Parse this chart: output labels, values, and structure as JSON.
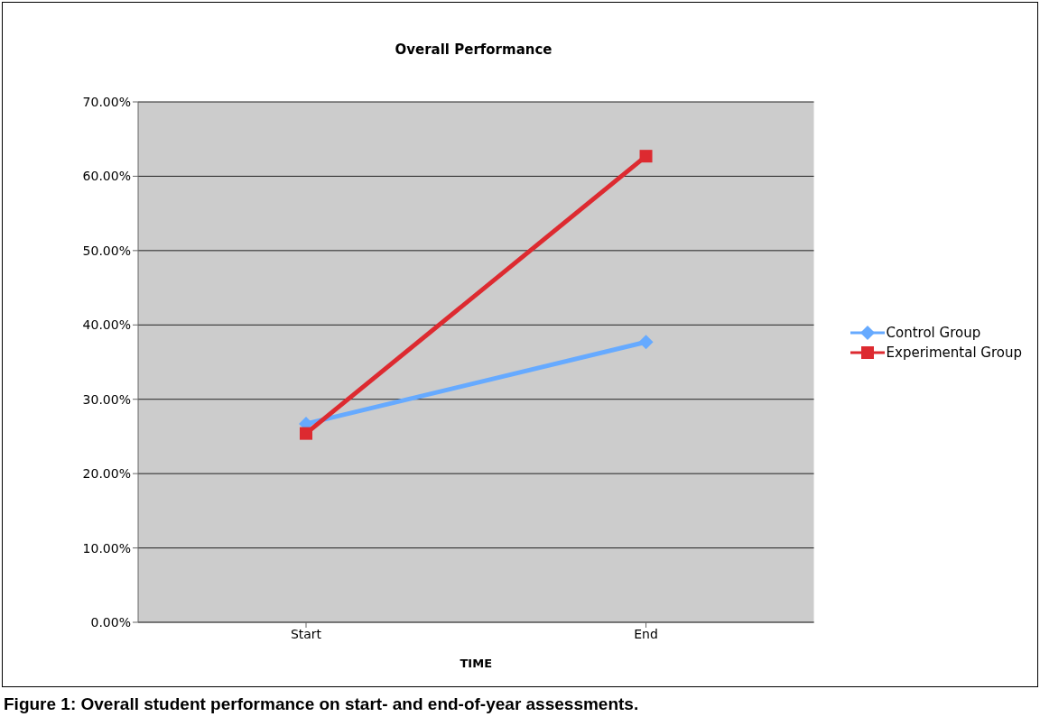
{
  "chart_data": {
    "type": "line",
    "title": "Overall Performance",
    "xlabel": "TIME",
    "categories": [
      "Start",
      "End"
    ],
    "series": [
      {
        "name": "Control Group",
        "color": "#66aaff",
        "values": [
          26.7,
          37.7
        ],
        "marker": "diamond"
      },
      {
        "name": "Experimental Group",
        "color": "#dd2a30",
        "values": [
          25.4,
          62.7
        ],
        "marker": "square"
      }
    ],
    "ylim": [
      0,
      70
    ],
    "yticks": [
      {
        "value": 0,
        "label": "0.00%"
      },
      {
        "value": 10,
        "label": "10.00%"
      },
      {
        "value": 20,
        "label": "20.00%"
      },
      {
        "value": 30,
        "label": "30.00%"
      },
      {
        "value": 40,
        "label": "40.00%"
      },
      {
        "value": 50,
        "label": "50.00%"
      },
      {
        "value": 60,
        "label": "60.00%"
      },
      {
        "value": 70,
        "label": "70.00%"
      }
    ],
    "grid": "y",
    "legend": "right",
    "annotations": [
      "Figure 1: Overall student performance on start- and end-of-year assessments."
    ]
  }
}
